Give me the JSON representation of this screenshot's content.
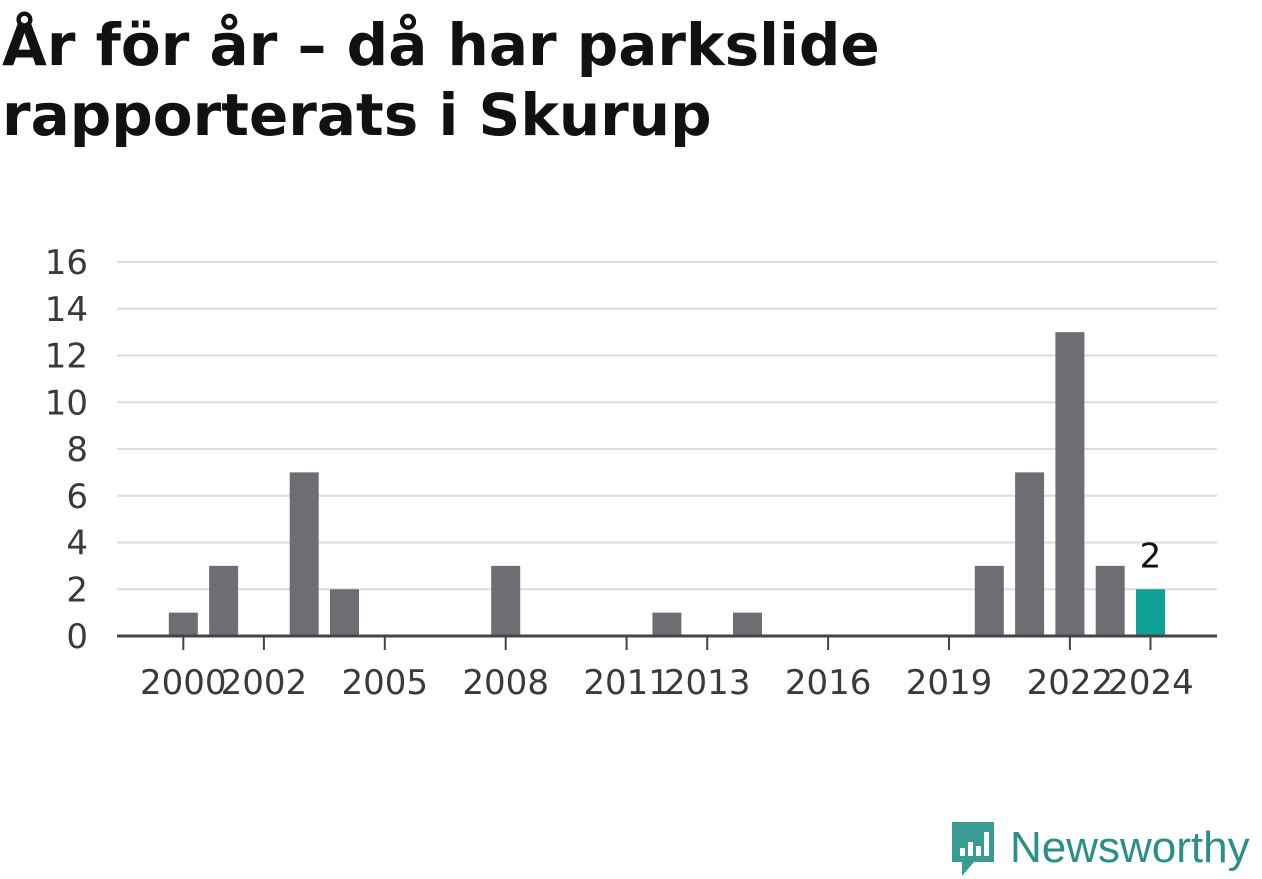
{
  "title": "År för år – då har parkslide rapporterats i Skurup",
  "brand": {
    "name": "Newsworthy",
    "icon": "newsworthy-chart-bubble-icon",
    "color": "#3a9b92"
  },
  "chart_data": {
    "type": "bar",
    "title": "År för år – då har parkslide rapporterats i Skurup",
    "xlabel": "",
    "ylabel": "",
    "ylim": [
      0,
      16
    ],
    "yticks": [
      0,
      2,
      4,
      6,
      8,
      10,
      12,
      14,
      16
    ],
    "xticks": [
      "2000",
      "2002",
      "2005",
      "2008",
      "2011",
      "2013",
      "2016",
      "2019",
      "2022",
      "2024"
    ],
    "grid": true,
    "categories": [
      "1999",
      "2000",
      "2001",
      "2002",
      "2003",
      "2004",
      "2005",
      "2006",
      "2007",
      "2008",
      "2009",
      "2010",
      "2011",
      "2012",
      "2013",
      "2014",
      "2015",
      "2016",
      "2017",
      "2018",
      "2019",
      "2020",
      "2021",
      "2022",
      "2023",
      "2024"
    ],
    "values": [
      0,
      1,
      3,
      0,
      7,
      2,
      0,
      0,
      0,
      3,
      0,
      0,
      0,
      1,
      0,
      1,
      0,
      0,
      0,
      0,
      0,
      3,
      7,
      13,
      3,
      2
    ],
    "highlight": {
      "category": "2024",
      "label": "2"
    },
    "colors": {
      "bar": "#6e6d73",
      "highlight": "#0fa096",
      "grid": "#dddddd",
      "axis": "#444444"
    }
  }
}
